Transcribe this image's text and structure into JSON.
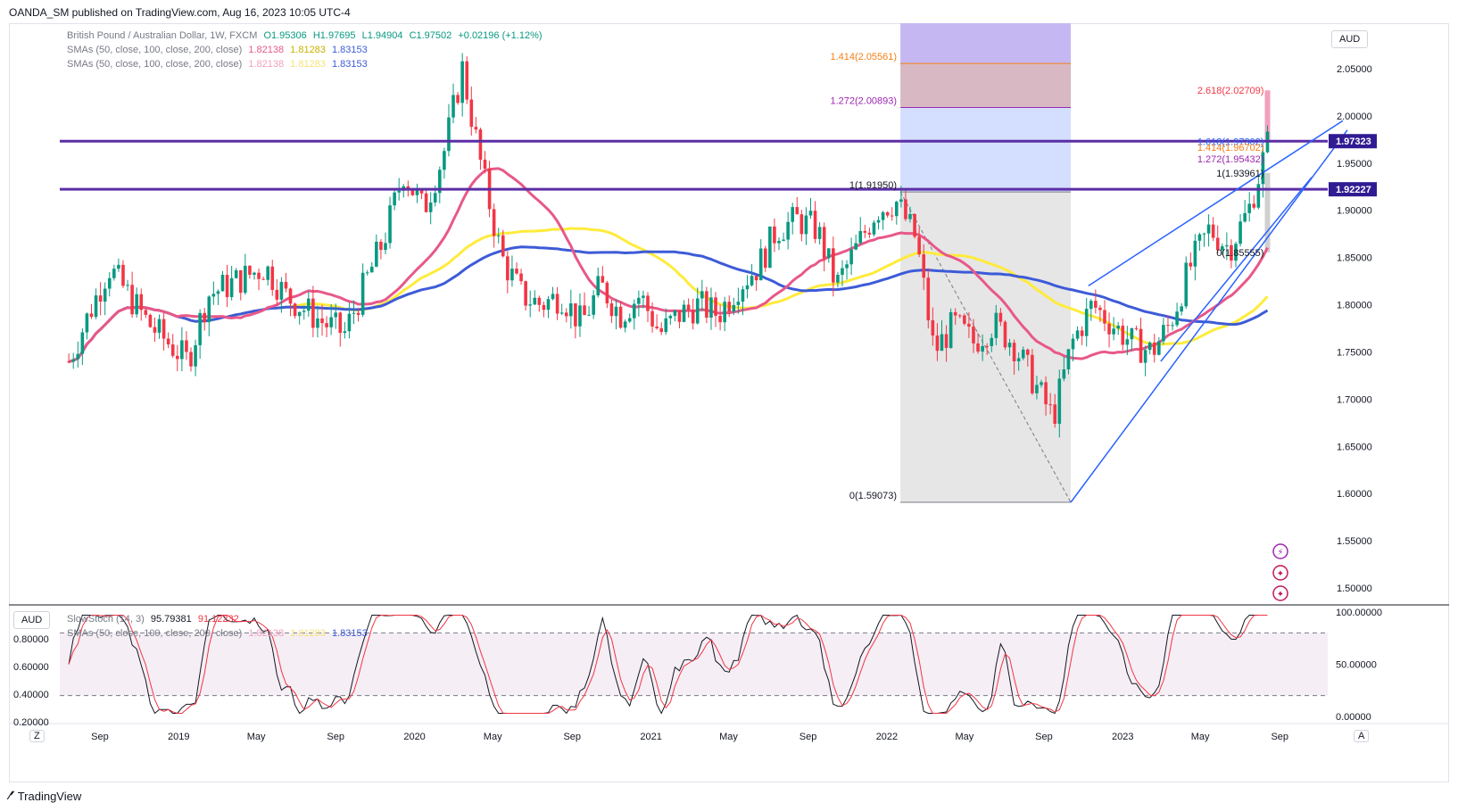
{
  "publisher_line": "OANDA_SM published on TradingView.com, Aug 16, 2023 10:05 UTC-4",
  "footer_logo": "TradingView",
  "price_pane": {
    "currency": "AUD",
    "legend": {
      "symbol": "British Pound / Australian Dollar, 1W, FXCM",
      "open": "O1.95306",
      "high": "H1.97695",
      "low": "L1.94904",
      "close": "C1.97502",
      "change": "+0.02196 (+1.12%)",
      "sma_label_1": "SMAs (50, close, 100, close, 200, close)",
      "sma_label_2": "SMAs (50, close, 100, close, 200, close)",
      "sma50": "1.82138",
      "sma100": "1.81283",
      "sma200": "1.83153"
    },
    "y_ticks": [
      "2.05000",
      "2.00000",
      "1.95000",
      "1.90000",
      "1.85000",
      "1.80000",
      "1.75000",
      "1.70000",
      "1.65000",
      "1.60000",
      "1.55000",
      "1.50000"
    ],
    "price_labels": [
      {
        "text": "1.97323",
        "color": "#311b92"
      },
      {
        "text": "1.92227",
        "color": "#311b92"
      }
    ],
    "fib_labels_left": [
      {
        "text": "1.414(2.05561)",
        "color": "#f57f17"
      },
      {
        "text": "1.272(2.00893)",
        "color": "#9c27b0"
      },
      {
        "text": "1(1.91950)",
        "color": "#131722"
      },
      {
        "text": "0(1.59073)",
        "color": "#131722"
      }
    ],
    "fib_labels_right": [
      {
        "text": "2.618(2.02709)",
        "color": "#f23645"
      },
      {
        "text": "1.618(1.97302)",
        "color": "#2962ff"
      },
      {
        "text": "1.414(1.96702)",
        "color": "#f57f17"
      },
      {
        "text": "1.272(1.95432)",
        "color": "#9c27b0"
      },
      {
        "text": "1(1.93961)",
        "color": "#131722"
      },
      {
        "text": "0(1.85555)",
        "color": "#131722"
      }
    ]
  },
  "stoch_pane": {
    "currency": "AUD",
    "legend_name": "SlowStoch (14, 3)",
    "k": "95.79381",
    "d": "91.12232",
    "overlay_sma_label": "SMAs (50, close, 100, close, 200, close)",
    "overlay_sma50": "1.82138",
    "overlay_sma100": "1.81283",
    "overlay_sma200": "1.83153",
    "left_ticks": [
      "0.80000",
      "0.60000",
      "0.40000",
      "0.20000"
    ],
    "right_ticks": [
      "100.00000",
      "50.00000",
      "0.00000"
    ]
  },
  "time_axis": [
    "Sep",
    "2019",
    "May",
    "Sep",
    "2020",
    "May",
    "Sep",
    "2021",
    "May",
    "Sep",
    "2022",
    "May",
    "Sep",
    "2023",
    "May",
    "Sep"
  ],
  "buttons": {
    "zoom": "Z",
    "auto": "A"
  },
  "colors": {
    "bull": "#089981",
    "bear": "#f23645",
    "sma50": "#e8588a",
    "sma100": "#ffeb3b",
    "sma200": "#3d5bd8",
    "hline": "#5b2ea6",
    "trend": "#2962ff"
  },
  "chart_data": {
    "type": "candlestick",
    "title": "British Pound / Australian Dollar, 1W, FXCM",
    "x_range": [
      "2018-07",
      "2023-09"
    ],
    "ylim": [
      1.48,
      2.1
    ],
    "ohlc_last": {
      "open": 1.95306,
      "high": 1.97695,
      "low": 1.94904,
      "close": 1.97502
    },
    "close_path": [
      [
        "2018-07",
        1.74
      ],
      [
        "2018-09",
        1.84
      ],
      [
        "2018-11",
        1.78
      ],
      [
        "2019-01",
        1.74
      ],
      [
        "2019-02",
        1.81
      ],
      [
        "2019-04",
        1.83
      ],
      [
        "2019-05",
        1.84
      ],
      [
        "2019-06",
        1.81
      ],
      [
        "2019-08",
        1.78
      ],
      [
        "2019-09",
        1.77
      ],
      [
        "2019-10",
        1.82
      ],
      [
        "2019-11",
        1.87
      ],
      [
        "2019-12",
        1.94
      ],
      [
        "2020-01",
        1.9
      ],
      [
        "2020-02",
        1.96
      ],
      [
        "2020-03",
        2.05
      ],
      [
        "2020-04",
        1.94
      ],
      [
        "2020-05",
        1.85
      ],
      [
        "2020-06",
        1.81
      ],
      [
        "2020-07",
        1.8
      ],
      [
        "2020-08",
        1.81
      ],
      [
        "2020-09",
        1.78
      ],
      [
        "2020-10",
        1.82
      ],
      [
        "2020-11",
        1.79
      ],
      [
        "2020-12",
        1.81
      ],
      [
        "2021-01",
        1.77
      ],
      [
        "2021-02",
        1.79
      ],
      [
        "2021-03",
        1.8
      ],
      [
        "2021-04",
        1.79
      ],
      [
        "2021-05",
        1.82
      ],
      [
        "2021-06",
        1.84
      ],
      [
        "2021-07",
        1.88
      ],
      [
        "2021-08",
        1.89
      ],
      [
        "2021-09",
        1.88
      ],
      [
        "2021-10",
        1.82
      ],
      [
        "2021-11",
        1.86
      ],
      [
        "2021-12",
        1.9
      ],
      [
        "2022-01",
        1.91
      ],
      [
        "2022-02",
        1.87
      ],
      [
        "2022-03",
        1.75
      ],
      [
        "2022-04",
        1.78
      ],
      [
        "2022-05",
        1.76
      ],
      [
        "2022-06",
        1.78
      ],
      [
        "2022-07",
        1.76
      ],
      [
        "2022-08",
        1.72
      ],
      [
        "2022-09",
        1.68
      ],
      [
        "2022-10",
        1.76
      ],
      [
        "2022-11",
        1.8
      ],
      [
        "2022-12",
        1.78
      ],
      [
        "2023-01",
        1.76
      ],
      [
        "2023-02",
        1.75
      ],
      [
        "2023-03",
        1.78
      ],
      [
        "2023-04",
        1.84
      ],
      [
        "2023-05",
        1.88
      ],
      [
        "2023-06",
        1.86
      ],
      [
        "2023-07",
        1.9
      ],
      [
        "2023-08",
        1.975
      ]
    ],
    "horizontal_levels": [
      1.97323,
      1.92227
    ],
    "sma_last": {
      "sma50": 1.82138,
      "sma100": 1.81283,
      "sma200": 1.83153
    },
    "fib_extension_1": {
      "levels": [
        {
          "ratio": "0",
          "price": 1.59073
        },
        {
          "ratio": "1",
          "price": 1.9195
        },
        {
          "ratio": "1.272",
          "price": 2.00893
        },
        {
          "ratio": "1.414",
          "price": 2.05561
        }
      ]
    },
    "fib_extension_2": {
      "levels": [
        {
          "ratio": "0",
          "price": 1.85555
        },
        {
          "ratio": "1",
          "price": 1.93961
        },
        {
          "ratio": "1.272",
          "price": 1.95432
        },
        {
          "ratio": "1.414",
          "price": 1.96702
        },
        {
          "ratio": "1.618",
          "price": 1.97302
        },
        {
          "ratio": "2.618",
          "price": 2.02709
        }
      ]
    },
    "stochastic": {
      "k_last": 95.79381,
      "d_last": 91.12232,
      "overbought": 80,
      "oversold": 20
    }
  }
}
